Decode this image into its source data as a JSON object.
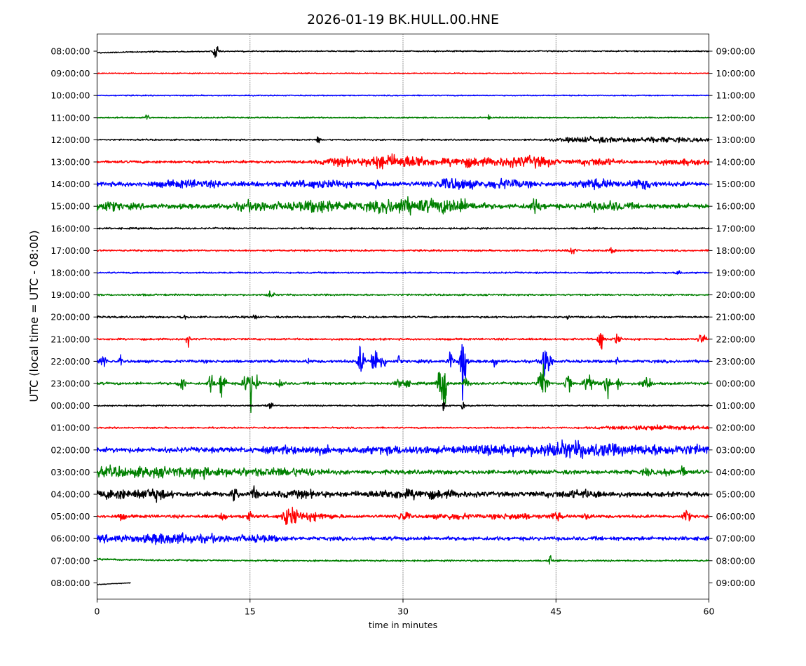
{
  "chart_data": {
    "type": "line",
    "title": "2026-01-19 BK.HULL.00.HNE",
    "xlabel": "time in minutes",
    "ylabel": "UTC (local time = UTC - 08:00)",
    "xlim": [
      0,
      60
    ],
    "x_ticks": [
      0,
      15,
      30,
      45,
      60
    ],
    "x_tick_labels": [
      "0",
      "15",
      "30",
      "45",
      "60"
    ],
    "grid": "vertical dotted at 15, 30, 45",
    "left_tick_labels": [
      "08:00:00",
      "09:00:00",
      "10:00:00",
      "11:00:00",
      "12:00:00",
      "13:00:00",
      "14:00:00",
      "15:00:00",
      "16:00:00",
      "17:00:00",
      "18:00:00",
      "19:00:00",
      "20:00:00",
      "21:00:00",
      "22:00:00",
      "23:00:00",
      "00:00:00",
      "01:00:00",
      "02:00:00",
      "03:00:00",
      "04:00:00",
      "05:00:00",
      "06:00:00",
      "07:00:00",
      "08:00:00"
    ],
    "right_tick_labels": [
      "09:00:00",
      "10:00:00",
      "11:00:00",
      "12:00:00",
      "13:00:00",
      "14:00:00",
      "15:00:00",
      "16:00:00",
      "17:00:00",
      "18:00:00",
      "19:00:00",
      "20:00:00",
      "21:00:00",
      "22:00:00",
      "23:00:00",
      "00:00:00",
      "01:00:00",
      "02:00:00",
      "03:00:00",
      "04:00:00",
      "05:00:00",
      "06:00:00",
      "07:00:00",
      "08:00:00",
      "09:00:00"
    ],
    "trace_colors": [
      "#000000",
      "#ff0000",
      "#0000ff",
      "#008000"
    ],
    "traces": [
      {
        "noise": 0.6,
        "drift": 1,
        "events": [
          [
            11.7,
            6,
            0.3
          ]
        ]
      },
      {
        "noise": 0.5,
        "events": []
      },
      {
        "noise": 0.5,
        "events": []
      },
      {
        "noise": 0.6,
        "events": [
          [
            4.9,
            6,
            0.15
          ],
          [
            38.4,
            3,
            0.1
          ]
        ]
      },
      {
        "noise": 0.7,
        "events": [
          [
            21.7,
            5,
            0.15
          ],
          [
            48,
            2,
            3
          ],
          [
            55,
            2,
            5
          ]
        ]
      },
      {
        "noise": 1.3,
        "events": [
          [
            24,
            3,
            2
          ],
          [
            28,
            6,
            1.5
          ],
          [
            31,
            5,
            2
          ],
          [
            36,
            4,
            2
          ],
          [
            40,
            3,
            2
          ],
          [
            43,
            4,
            2
          ],
          [
            49,
            3,
            2
          ],
          [
            57,
            2,
            3
          ]
        ]
      },
      {
        "noise": 2.2,
        "events": [
          [
            9,
            2,
            3
          ],
          [
            22,
            2,
            3
          ],
          [
            27.3,
            4,
            0.2
          ],
          [
            35,
            4,
            2
          ],
          [
            40,
            3,
            2
          ],
          [
            49,
            3,
            2
          ],
          [
            53.5,
            3.5,
            1
          ]
        ]
      },
      {
        "noise": 2.4,
        "events": [
          [
            0.5,
            3,
            2
          ],
          [
            15.5,
            3,
            2
          ],
          [
            22,
            4,
            3
          ],
          [
            30,
            6,
            3
          ],
          [
            35,
            5,
            2
          ],
          [
            43,
            5,
            0.6
          ],
          [
            50,
            3,
            2
          ]
        ]
      },
      {
        "noise": 0.8,
        "events": []
      },
      {
        "noise": 0.8,
        "events": [
          [
            46.5,
            3,
            0.4
          ],
          [
            50.5,
            2,
            0.4
          ]
        ]
      },
      {
        "noise": 0.7,
        "events": [
          [
            57,
            2,
            0.3
          ]
        ]
      },
      {
        "noise": 0.8,
        "events": [
          [
            4.6,
            2,
            0.15
          ],
          [
            17,
            3.5,
            0.3
          ]
        ]
      },
      {
        "noise": 0.9,
        "events": [
          [
            8.5,
            2,
            0.3
          ],
          [
            15.5,
            2.5,
            0.2
          ],
          [
            46.2,
            3,
            0.15
          ]
        ]
      },
      {
        "noise": 0.9,
        "events": [
          [
            8.9,
            7,
            0.15
          ],
          [
            49.4,
            10,
            0.3
          ],
          [
            51,
            5,
            0.3
          ],
          [
            59.3,
            5,
            0.4
          ]
        ]
      },
      {
        "noise": 1.4,
        "events": [
          [
            0.6,
            6,
            0.3
          ],
          [
            2.3,
            6,
            0.1
          ],
          [
            20.7,
            4,
            0.1
          ],
          [
            25.9,
            15,
            0.3
          ],
          [
            27.2,
            16,
            0.3
          ],
          [
            28,
            8,
            0.3
          ],
          [
            29.6,
            8,
            0.08
          ],
          [
            34.7,
            10,
            0.25
          ],
          [
            35.9,
            45,
            0.25
          ],
          [
            39,
            6,
            0.2
          ],
          [
            43.9,
            18,
            0.3
          ],
          [
            44.3,
            6,
            0.4
          ],
          [
            51,
            4,
            0.1
          ]
        ]
      },
      {
        "noise": 1.2,
        "events": [
          [
            8.3,
            12,
            0.25
          ],
          [
            11.2,
            8,
            0.3
          ],
          [
            12.3,
            16,
            0.3
          ],
          [
            14.7,
            10,
            0.4
          ],
          [
            15.1,
            20,
            0.12
          ],
          [
            15.6,
            8,
            0.3
          ],
          [
            18,
            5,
            0.3
          ],
          [
            30,
            5,
            0.6
          ],
          [
            33.8,
            18,
            0.4
          ],
          [
            34.1,
            22,
            0.12
          ],
          [
            36.2,
            5,
            0.3
          ],
          [
            43.7,
            18,
            0.4
          ],
          [
            46.2,
            12,
            0.3
          ],
          [
            48,
            8,
            0.3
          ],
          [
            48.6,
            6,
            0.3
          ],
          [
            50,
            13,
            0.3
          ],
          [
            51.1,
            5,
            0.3
          ],
          [
            53.9,
            7,
            0.4
          ]
        ]
      },
      {
        "noise": 0.7,
        "events": [
          [
            17,
            2,
            0.3
          ],
          [
            35.9,
            12,
            0.1
          ],
          [
            34,
            8,
            0.1
          ]
        ]
      },
      {
        "noise": 0.7,
        "events": [
          [
            55,
            2,
            5
          ]
        ]
      },
      {
        "noise": 2.4,
        "events": [
          [
            20,
            2,
            4
          ],
          [
            30,
            2,
            4
          ],
          [
            39,
            3,
            3
          ],
          [
            45,
            5,
            3
          ],
          [
            49,
            4,
            3
          ],
          [
            55,
            3,
            3
          ],
          [
            59,
            2,
            2
          ]
        ]
      },
      {
        "noise": 2.0,
        "events": [
          [
            1,
            3,
            3
          ],
          [
            6,
            3,
            3
          ],
          [
            10.5,
            3,
            2
          ],
          [
            14,
            2,
            2
          ],
          [
            17.5,
            2,
            2
          ],
          [
            20.5,
            2,
            2
          ],
          [
            54,
            3,
            0.4
          ],
          [
            55.9,
            3,
            0.3
          ],
          [
            57.4,
            4,
            0.4
          ]
        ]
      },
      {
        "noise": 2.3,
        "events": [
          [
            2,
            3,
            2
          ],
          [
            5.5,
            4,
            1.5
          ],
          [
            13.5,
            6,
            0.3
          ],
          [
            15.4,
            6,
            0.3
          ],
          [
            20,
            2,
            2
          ],
          [
            29,
            2,
            3
          ],
          [
            33,
            2,
            3
          ],
          [
            47.5,
            2,
            3
          ]
        ]
      },
      {
        "noise": 1.5,
        "events": [
          [
            2.4,
            3,
            0.3
          ],
          [
            12.4,
            3,
            0.3
          ],
          [
            14.9,
            3,
            0.4
          ],
          [
            18.6,
            8,
            0.4
          ],
          [
            19.3,
            8,
            0.3
          ],
          [
            21,
            3,
            2
          ],
          [
            30,
            4,
            0.6
          ],
          [
            35,
            2,
            2
          ],
          [
            41,
            2,
            2
          ],
          [
            45,
            3,
            0.6
          ],
          [
            48,
            3,
            0.4
          ],
          [
            57.8,
            6,
            0.3
          ]
        ]
      },
      {
        "noise": 1.8,
        "events": [
          [
            2,
            2,
            3
          ],
          [
            6.2,
            3,
            1.5
          ],
          [
            8.5,
            3,
            2
          ],
          [
            12,
            2,
            2
          ],
          [
            16,
            2,
            2
          ]
        ]
      },
      {
        "noise": 0.8,
        "drift": -1,
        "events": [
          [
            44.4,
            7,
            0.12
          ]
        ]
      },
      {
        "noise": 0.4,
        "partial": 3.3,
        "drift": 1,
        "events": []
      }
    ]
  }
}
